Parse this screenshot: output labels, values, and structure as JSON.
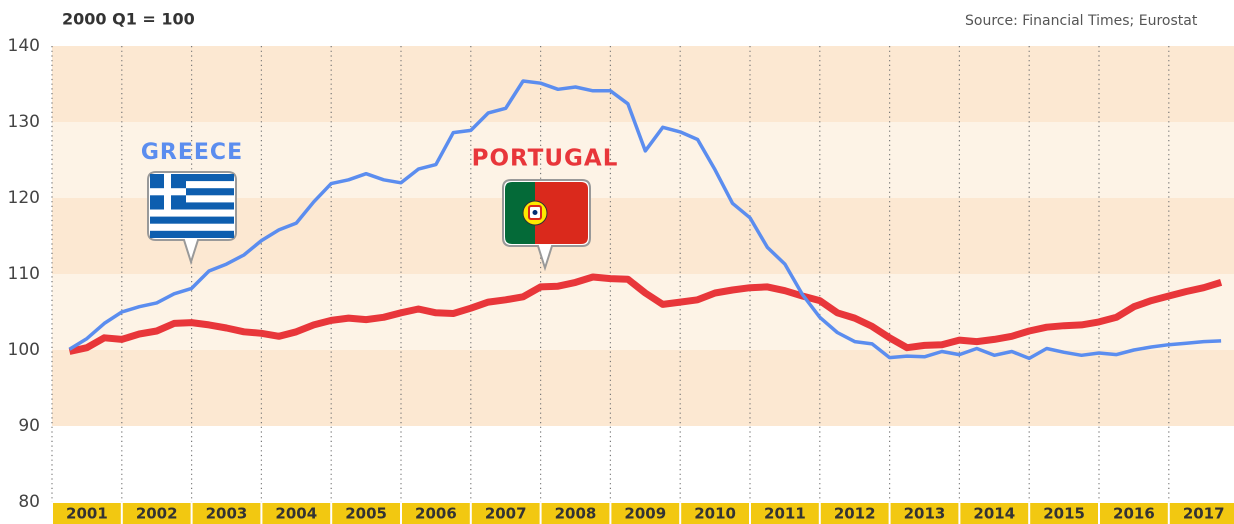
{
  "chart_data": {
    "type": "line",
    "subtitle": "2000 Q1 = 100",
    "source": "Source: Financial Times; Eurostat",
    "annotations": [
      "GREECE",
      "PORTUGAL"
    ],
    "x": [
      2001.25,
      2001.5,
      2001.75,
      2002,
      2002.25,
      2002.5,
      2002.75,
      2003,
      2003.25,
      2003.5,
      2003.75,
      2004,
      2004.25,
      2004.5,
      2004.75,
      2005,
      2005.25,
      2005.5,
      2005.75,
      2006,
      2006.25,
      2006.5,
      2006.75,
      2007,
      2007.25,
      2007.5,
      2007.75,
      2008,
      2008.25,
      2008.5,
      2008.75,
      2009,
      2009.25,
      2009.5,
      2009.75,
      2010,
      2010.25,
      2010.5,
      2010.75,
      2011,
      2011.25,
      2011.5,
      2011.75,
      2012,
      2012.25,
      2012.5,
      2012.75,
      2013,
      2013.25,
      2013.5,
      2013.75,
      2014,
      2014.25,
      2014.5,
      2014.75,
      2015,
      2015.25,
      2015.5,
      2015.75,
      2016,
      2016.25,
      2016.5,
      2016.75,
      2017,
      2017.25,
      2017.5,
      2017.75
    ],
    "series": [
      {
        "name": "GREECE",
        "color": "#5b8def",
        "values": [
          100.1,
          101.5,
          103.5,
          105,
          105.7,
          106.2,
          107.4,
          108.1,
          110.4,
          111.3,
          112.5,
          114.4,
          115.8,
          116.7,
          119.5,
          121.9,
          122.4,
          123.2,
          122.4,
          122,
          123.8,
          124.4,
          128.6,
          128.9,
          131.2,
          131.8,
          135.4,
          135.1,
          134.3,
          134.6,
          134.1,
          134.1,
          132.4,
          126.2,
          129.3,
          128.7,
          127.7,
          123.7,
          119.3,
          117.4,
          113.5,
          111.3,
          107.3,
          104.3,
          102.3,
          101.1,
          100.8,
          99,
          99.2,
          99.1,
          99.8,
          99.4,
          100.2,
          99.3,
          99.8,
          98.9,
          100.2,
          99.7,
          99.3,
          99.6,
          99.4,
          100,
          100.4,
          100.7,
          100.9,
          101.1,
          101.2
        ]
      },
      {
        "name": "PORTUGAL",
        "color": "#e8363a",
        "values": [
          99.8,
          100.3,
          101.6,
          101.4,
          102.1,
          102.5,
          103.5,
          103.6,
          103.3,
          102.9,
          102.4,
          102.2,
          101.8,
          102.4,
          103.3,
          103.9,
          104.2,
          104,
          104.3,
          104.9,
          105.4,
          104.9,
          104.8,
          105.5,
          106.3,
          106.6,
          107,
          108.3,
          108.4,
          108.9,
          109.6,
          109.4,
          109.3,
          107.5,
          106,
          106.3,
          106.6,
          107.5,
          107.9,
          108.2,
          108.3,
          107.8,
          107.1,
          106.5,
          104.9,
          104.2,
          103.1,
          101.6,
          100.3,
          100.6,
          100.7,
          101.3,
          101.1,
          101.4,
          101.8,
          102.5,
          103,
          103.2,
          103.3,
          103.7,
          104.3,
          105.7,
          106.5,
          107.1,
          107.7,
          108.2,
          108.9
        ]
      }
    ],
    "xlim": [
      2001,
      2018
    ],
    "xticks": [
      2001,
      2002,
      2003,
      2004,
      2005,
      2006,
      2007,
      2008,
      2009,
      2010,
      2011,
      2012,
      2013,
      2014,
      2015,
      2016,
      2017
    ],
    "ylim": [
      80,
      140
    ],
    "yticks": [
      80,
      90,
      100,
      110,
      120,
      130,
      140
    ],
    "grid": true
  }
}
